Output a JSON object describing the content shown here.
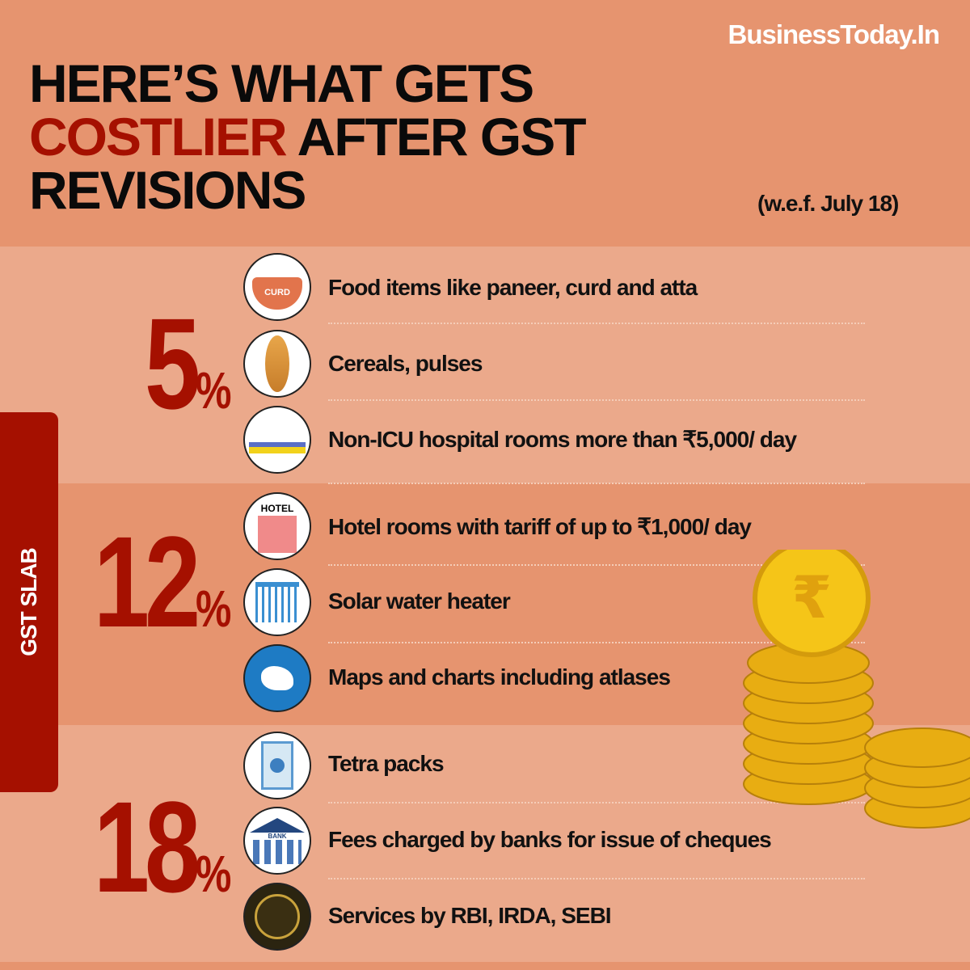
{
  "brand": "BusinessToday.In",
  "title": {
    "line1": "HERE’S WHAT GETS",
    "highlight": "COSTLIER",
    "line2_rest": " AFTER GST",
    "line3": "REVISIONS"
  },
  "effective": "(w.e.f. July 18)",
  "side_label": "GST SLAB",
  "colors": {
    "accent": "#a51000",
    "header_bg": "#e6946f",
    "band_light": "#eba98b",
    "brand_text": "#ffffff"
  },
  "slabs": [
    {
      "rate": "5",
      "unit": "%",
      "items": [
        {
          "icon": "curd-bowl-icon",
          "icon_text": "CURD",
          "label": "Food items like paneer, curd and atta"
        },
        {
          "icon": "wheat-icon",
          "label": "Cereals, pulses"
        },
        {
          "icon": "hospital-bed-icon",
          "label": "Non-ICU hospital rooms more than ₹5,000/ day"
        }
      ]
    },
    {
      "rate": "12",
      "unit": "%",
      "items": [
        {
          "icon": "hotel-icon",
          "icon_text": "HOTEL",
          "label": "Hotel rooms with tariff of up to ₹1,000/ day"
        },
        {
          "icon": "solar-heater-icon",
          "label": "Solar water heater"
        },
        {
          "icon": "globe-icon",
          "label": "Maps and charts including atlases"
        }
      ]
    },
    {
      "rate": "18",
      "unit": "%",
      "items": [
        {
          "icon": "tetra-pack-icon",
          "label": "Tetra packs"
        },
        {
          "icon": "bank-icon",
          "icon_text": "BANK",
          "label": "Fees charged by banks for issue of cheques"
        },
        {
          "icon": "rbi-seal-icon",
          "label": "Services by RBI, IRDA, SEBI"
        }
      ]
    }
  ]
}
